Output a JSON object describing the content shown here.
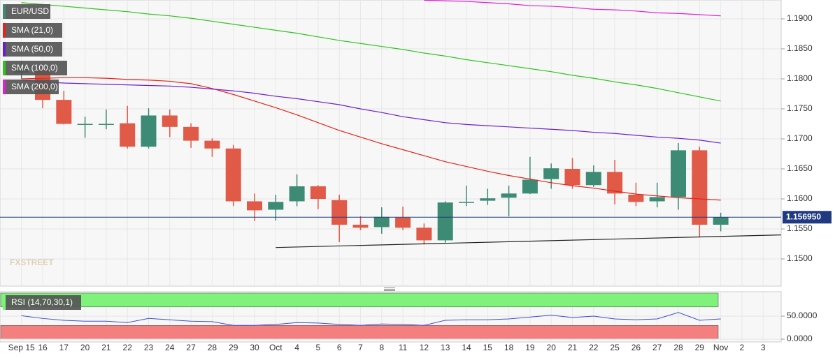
{
  "chart_data": [
    {
      "type": "candlestick",
      "categories": [
        "Sep 15",
        "16",
        "17",
        "20",
        "21",
        "22",
        "23",
        "24",
        "27",
        "28",
        "29",
        "30",
        "Oct",
        "4",
        "5",
        "6",
        "7",
        "8",
        "11",
        "12",
        "13",
        "14",
        "15",
        "18",
        "19",
        "20",
        "21",
        "22",
        "25",
        "26",
        "27",
        "28",
        "29",
        "Nov",
        "2",
        "3"
      ],
      "series": [
        {
          "name": "EUR/USD",
          "up_color": "#3d8a75",
          "down_color": "#e05a47",
          "open": [
            1.181,
            1.1815,
            1.1765,
            1.1725,
            1.1724,
            1.1726,
            1.1687,
            1.1739,
            1.172,
            1.1697,
            1.1684,
            1.1596,
            1.1582,
            1.1596,
            1.1621,
            1.1598,
            1.1557,
            1.1553,
            1.1569,
            1.1552,
            1.1531,
            1.1594,
            1.1597,
            1.1602,
            1.1609,
            1.1633,
            1.165,
            1.1623,
            1.1645,
            1.1607,
            1.1596,
            1.1603,
            1.1681,
            1.1557,
            null,
            null
          ],
          "high": [
            1.183,
            1.1821,
            1.178,
            1.1737,
            1.1749,
            1.1755,
            1.1751,
            1.1749,
            1.1726,
            1.1701,
            1.169,
            1.1609,
            1.1607,
            1.1641,
            1.1623,
            1.1607,
            1.1571,
            1.1586,
            1.1587,
            1.1559,
            1.1596,
            1.1622,
            1.1617,
            1.1622,
            1.167,
            1.1659,
            1.1668,
            1.1656,
            1.1665,
            1.1627,
            1.1627,
            1.1693,
            1.1687,
            1.1577,
            null,
            null
          ],
          "low": [
            1.18,
            1.1751,
            1.1724,
            1.1702,
            1.1716,
            1.1684,
            1.1684,
            1.1703,
            1.1685,
            1.167,
            1.1588,
            1.1563,
            1.1564,
            1.1588,
            1.1583,
            1.1528,
            1.1548,
            1.1542,
            1.1548,
            1.1524,
            1.1527,
            1.1588,
            1.159,
            1.1571,
            1.1608,
            1.1617,
            1.1617,
            1.162,
            1.1591,
            1.1588,
            1.1586,
            1.1582,
            1.1536,
            1.1546,
            null,
            null
          ],
          "close": [
            1.182,
            1.1765,
            1.1725,
            1.1725,
            1.1725,
            1.1687,
            1.1739,
            1.172,
            1.1697,
            1.1684,
            1.1596,
            1.1581,
            1.1595,
            1.1621,
            1.16,
            1.1557,
            1.1552,
            1.157,
            1.1552,
            1.1531,
            1.1594,
            1.1595,
            1.1601,
            1.1609,
            1.1632,
            1.1651,
            1.1623,
            1.1645,
            1.1609,
            1.1595,
            1.1603,
            1.1681,
            1.1557,
            1.15695,
            null,
            null
          ]
        },
        {
          "name": "SMA (21,0)",
          "color": "#e8231b",
          "values": [
            1.18,
            1.1801,
            1.1802,
            1.1802,
            1.1801,
            1.1799,
            1.1798,
            1.1796,
            1.1792,
            1.1784,
            1.1774,
            1.1763,
            1.1752,
            1.174,
            1.1727,
            1.1714,
            1.1703,
            1.1692,
            1.1682,
            1.1672,
            1.1662,
            1.1654,
            1.1646,
            1.1639,
            1.1633,
            1.1627,
            1.1622,
            1.1618,
            1.1613,
            1.1608,
            1.1605,
            1.1602,
            1.16,
            1.1598,
            null,
            null
          ]
        },
        {
          "name": "SMA (50,0)",
          "color": "#6a1fd1",
          "values": [
            1.1798,
            1.1795,
            1.1793,
            1.1792,
            1.1791,
            1.179,
            1.1789,
            1.1788,
            1.1786,
            1.1783,
            1.178,
            1.1776,
            1.1771,
            1.1767,
            1.1762,
            1.1757,
            1.175,
            1.1744,
            1.1737,
            1.1732,
            1.1727,
            1.1724,
            1.1722,
            1.172,
            1.1718,
            1.1716,
            1.1714,
            1.1711,
            1.1709,
            1.1706,
            1.1703,
            1.1701,
            1.1698,
            1.1693,
            null,
            null
          ]
        },
        {
          "name": "SMA (100,0)",
          "color": "#2fc41f",
          "values": [
            1.1927,
            1.1924,
            1.1921,
            1.1918,
            1.1915,
            1.1912,
            1.1908,
            1.1905,
            1.1901,
            1.1896,
            1.1891,
            1.1886,
            1.1881,
            1.1876,
            1.187,
            1.1864,
            1.1859,
            1.1854,
            1.1849,
            1.1843,
            1.1838,
            1.1832,
            1.1827,
            1.1822,
            1.1817,
            1.1812,
            1.1806,
            1.1801,
            1.1795,
            1.179,
            1.1784,
            1.1777,
            1.177,
            1.1763,
            null,
            null
          ]
        },
        {
          "name": "SMA (200,0)",
          "color": "#e01fd8",
          "values": [
            null,
            null,
            null,
            null,
            null,
            null,
            null,
            null,
            null,
            null,
            null,
            null,
            null,
            null,
            null,
            null,
            null,
            null,
            null,
            1.1931,
            1.193,
            1.1929,
            1.1927,
            1.1925,
            1.1922,
            1.1921,
            1.1919,
            1.1916,
            1.1915,
            1.1913,
            1.191,
            1.1909,
            1.1907,
            1.1905,
            null,
            null
          ]
        }
      ],
      "trendline": {
        "x": [
          12,
          35.85
        ],
        "values": [
          1.1519,
          1.154
        ],
        "color": "#222222"
      },
      "last_price": {
        "value": 1.15695,
        "label": "1.156950",
        "color": "#1f3a80"
      },
      "watermark": "FXSTREET",
      "ylim": [
        1.14547,
        1.19314
      ],
      "yticks": [
        {
          "value": 1.15,
          "label": "1.1500"
        },
        {
          "value": 1.155,
          "label": "1.1550"
        },
        {
          "value": 1.16,
          "label": "1.1600"
        },
        {
          "value": 1.165,
          "label": "1.1650"
        },
        {
          "value": 1.17,
          "label": "1.1700"
        },
        {
          "value": 1.175,
          "label": "1.1750"
        },
        {
          "value": 1.18,
          "label": "1.1800"
        },
        {
          "value": 1.185,
          "label": "1.1850"
        },
        {
          "value": 1.19,
          "label": "1.1900"
        }
      ],
      "grid": true
    },
    {
      "type": "line",
      "series": [
        {
          "name": "RSI (14,70,30,1)",
          "color": "#3b4fd6",
          "values": [
            51,
            45,
            41,
            39,
            39,
            36,
            45,
            42,
            39,
            38,
            30,
            30,
            32,
            36,
            35,
            32,
            30,
            33,
            32,
            30,
            41,
            42,
            42,
            44,
            48,
            52,
            47,
            50,
            44,
            42,
            44,
            58,
            41,
            44,
            null,
            null
          ]
        }
      ],
      "bands": [
        {
          "range": [
            70,
            100
          ],
          "color": "#7ef27a"
        },
        {
          "range": [
            0,
            30
          ],
          "color": "#f47f7f"
        }
      ],
      "ylim": [
        -6,
        103
      ],
      "yticks": [
        {
          "value": 0,
          "label": "0.0000"
        },
        {
          "value": 50,
          "label": "50.0000"
        }
      ],
      "grid": true
    }
  ]
}
